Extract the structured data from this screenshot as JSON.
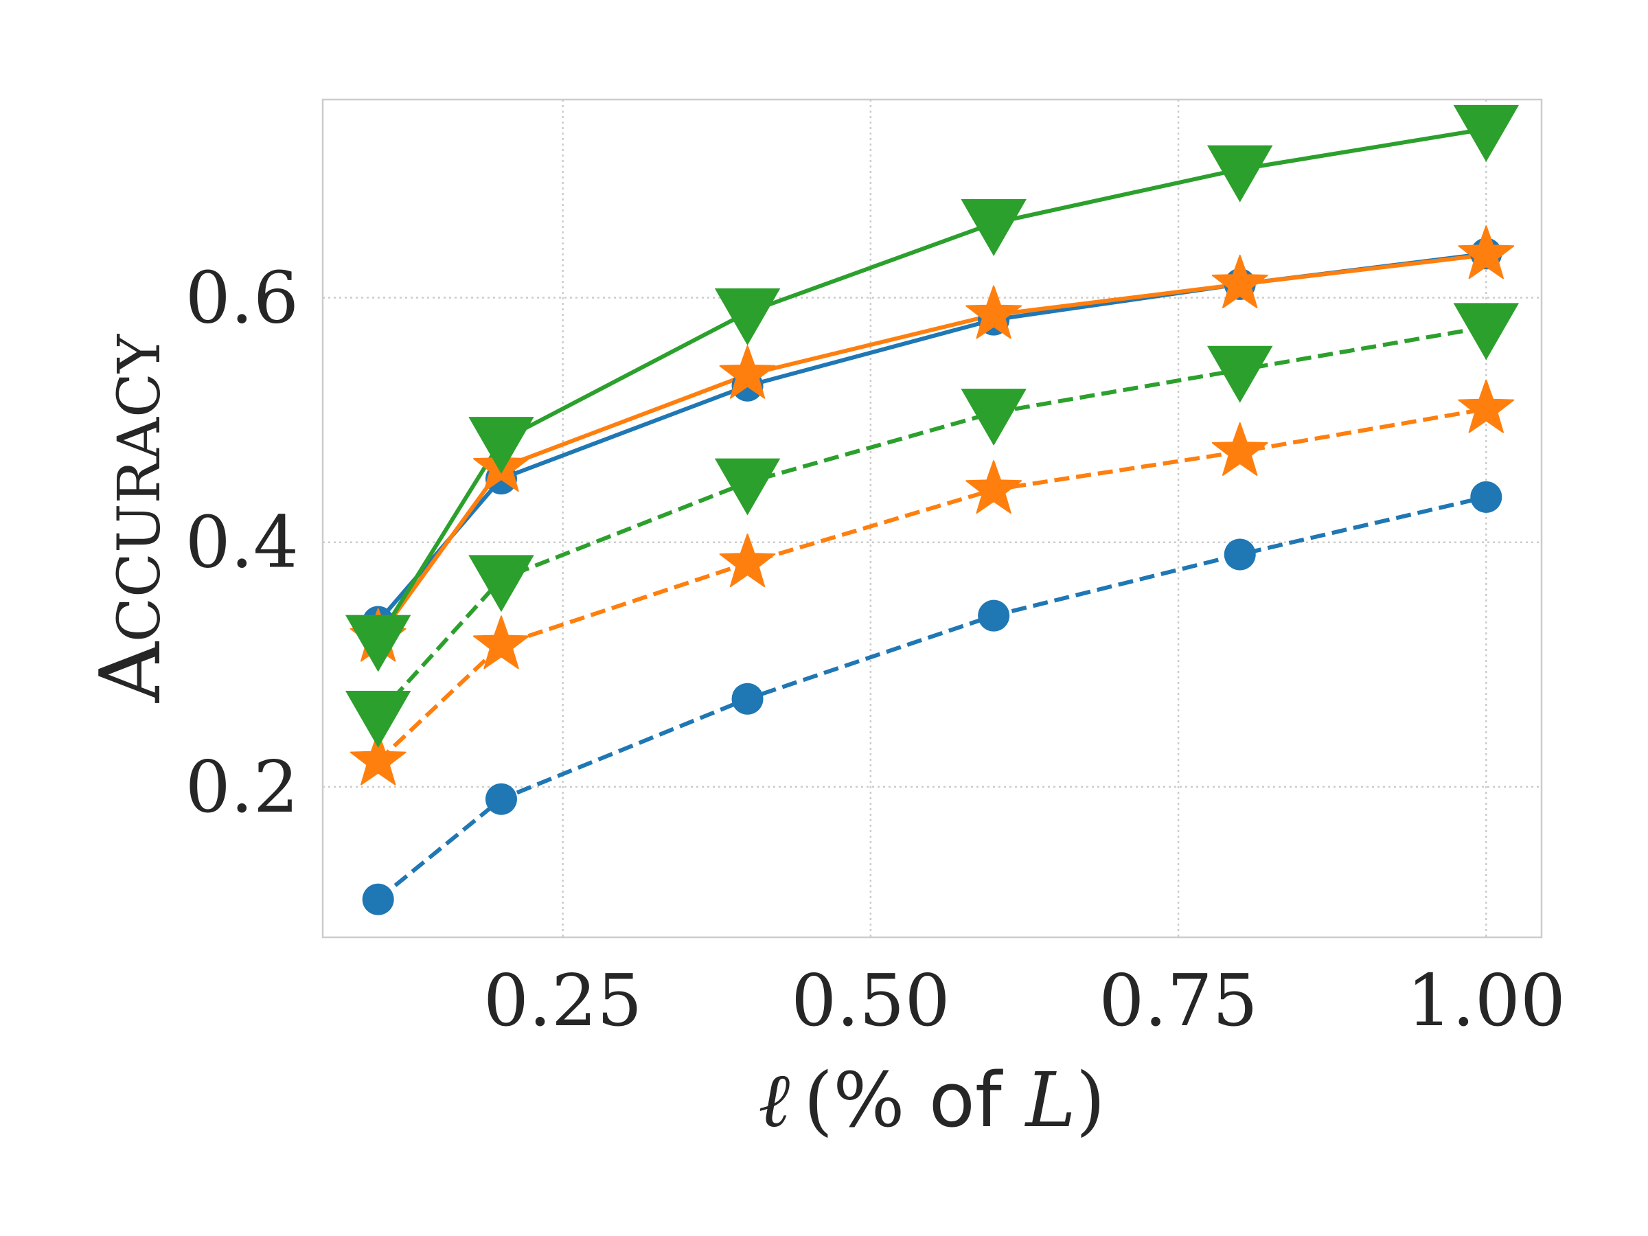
{
  "chart_data": {
    "type": "line",
    "title": "",
    "xlabel": {
      "symbol": "ℓ",
      "open_paren": "(",
      "pct": "%",
      "of": " of ",
      "var": "L",
      "close_paren": ")"
    },
    "ylabel": "Accuracy",
    "xlim": [
      0.055,
      1.045
    ],
    "ylim": [
      0.077,
      0.762
    ],
    "xticks": [
      0.25,
      0.5,
      0.75,
      1.0
    ],
    "xtick_labels": [
      "0.25",
      "0.50",
      "0.75",
      "1.00"
    ],
    "yticks": [
      0.2,
      0.4,
      0.6
    ],
    "ytick_labels": [
      "0.2",
      "0.4",
      "0.6"
    ],
    "grid": true,
    "x": [
      0.1,
      0.2,
      0.4,
      0.6,
      0.8,
      1.0
    ],
    "series": [
      {
        "id": "blue-solid",
        "color": "#1f77b4",
        "dash": "solid",
        "marker": "circle",
        "values": [
          0.335,
          0.452,
          0.528,
          0.582,
          0.611,
          0.636
        ]
      },
      {
        "id": "orange-solid",
        "color": "#ff7f0e",
        "dash": "solid",
        "marker": "star",
        "values": [
          0.322,
          0.461,
          0.537,
          0.586,
          0.611,
          0.635
        ]
      },
      {
        "id": "green-solid",
        "color": "#2ca02c",
        "dash": "solid",
        "marker": "triangle",
        "values": [
          0.321,
          0.483,
          0.588,
          0.661,
          0.705,
          0.738
        ]
      },
      {
        "id": "blue-dashed",
        "color": "#1f77b4",
        "dash": "dashed",
        "marker": "circle",
        "values": [
          0.108,
          0.19,
          0.272,
          0.34,
          0.39,
          0.437
        ]
      },
      {
        "id": "orange-dashed",
        "color": "#ff7f0e",
        "dash": "dashed",
        "marker": "star",
        "values": [
          0.221,
          0.316,
          0.383,
          0.443,
          0.474,
          0.509
        ]
      },
      {
        "id": "green-dashed",
        "color": "#2ca02c",
        "dash": "dashed",
        "marker": "triangle",
        "values": [
          0.259,
          0.37,
          0.449,
          0.506,
          0.541,
          0.576
        ]
      }
    ],
    "colors": {
      "axes": "#cccccc",
      "grid": "#cccccc",
      "text": "#262626"
    }
  }
}
